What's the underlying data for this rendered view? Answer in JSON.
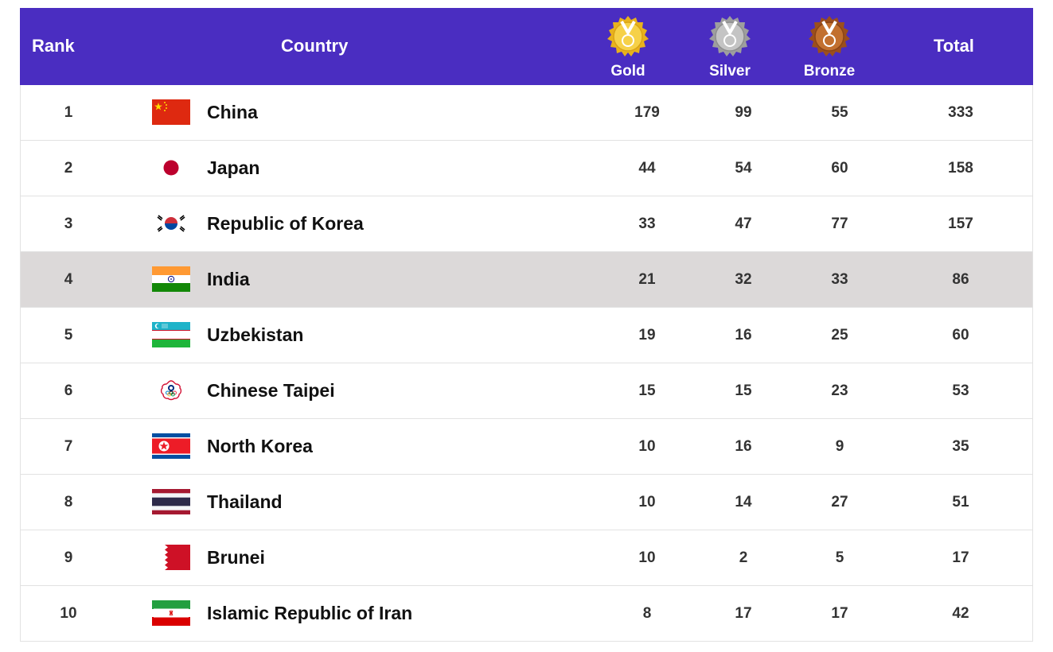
{
  "header": {
    "rank": "Rank",
    "country": "Country",
    "gold": "Gold",
    "silver": "Silver",
    "bronze": "Bronze",
    "total": "Total"
  },
  "colors": {
    "header_bg": "#4a2dc1",
    "highlight_row": "#dcd9d9",
    "gold": "#f2c230",
    "silver": "#b8b8b8",
    "bronze": "#b8642a"
  },
  "rows": [
    {
      "rank": "1",
      "country": "China",
      "flag": "china-flag-icon",
      "gold": "179",
      "silver": "99",
      "bronze": "55",
      "total": "333"
    },
    {
      "rank": "2",
      "country": "Japan",
      "flag": "japan-flag-icon",
      "gold": "44",
      "silver": "54",
      "bronze": "60",
      "total": "158"
    },
    {
      "rank": "3",
      "country": "Republic of Korea",
      "flag": "korea-flag-icon",
      "gold": "33",
      "silver": "47",
      "bronze": "77",
      "total": "157"
    },
    {
      "rank": "4",
      "country": "India",
      "flag": "india-flag-icon",
      "gold": "21",
      "silver": "32",
      "bronze": "33",
      "total": "86",
      "highlighted": true
    },
    {
      "rank": "5",
      "country": "Uzbekistan",
      "flag": "uzbekistan-flag-icon",
      "gold": "19",
      "silver": "16",
      "bronze": "25",
      "total": "60"
    },
    {
      "rank": "6",
      "country": "Chinese Taipei",
      "flag": "chinese-taipei-flag-icon",
      "gold": "15",
      "silver": "15",
      "bronze": "23",
      "total": "53"
    },
    {
      "rank": "7",
      "country": "North Korea",
      "flag": "north-korea-flag-icon",
      "gold": "10",
      "silver": "16",
      "bronze": "9",
      "total": "35"
    },
    {
      "rank": "8",
      "country": "Thailand",
      "flag": "thailand-flag-icon",
      "gold": "10",
      "silver": "14",
      "bronze": "27",
      "total": "51"
    },
    {
      "rank": "9",
      "country": "Brunei",
      "flag": "bahrain-flag-icon",
      "gold": "10",
      "silver": "2",
      "bronze": "5",
      "total": "17"
    },
    {
      "rank": "10",
      "country": "Islamic Republic of Iran",
      "flag": "iran-flag-icon",
      "gold": "8",
      "silver": "17",
      "bronze": "17",
      "total": "42"
    }
  ]
}
